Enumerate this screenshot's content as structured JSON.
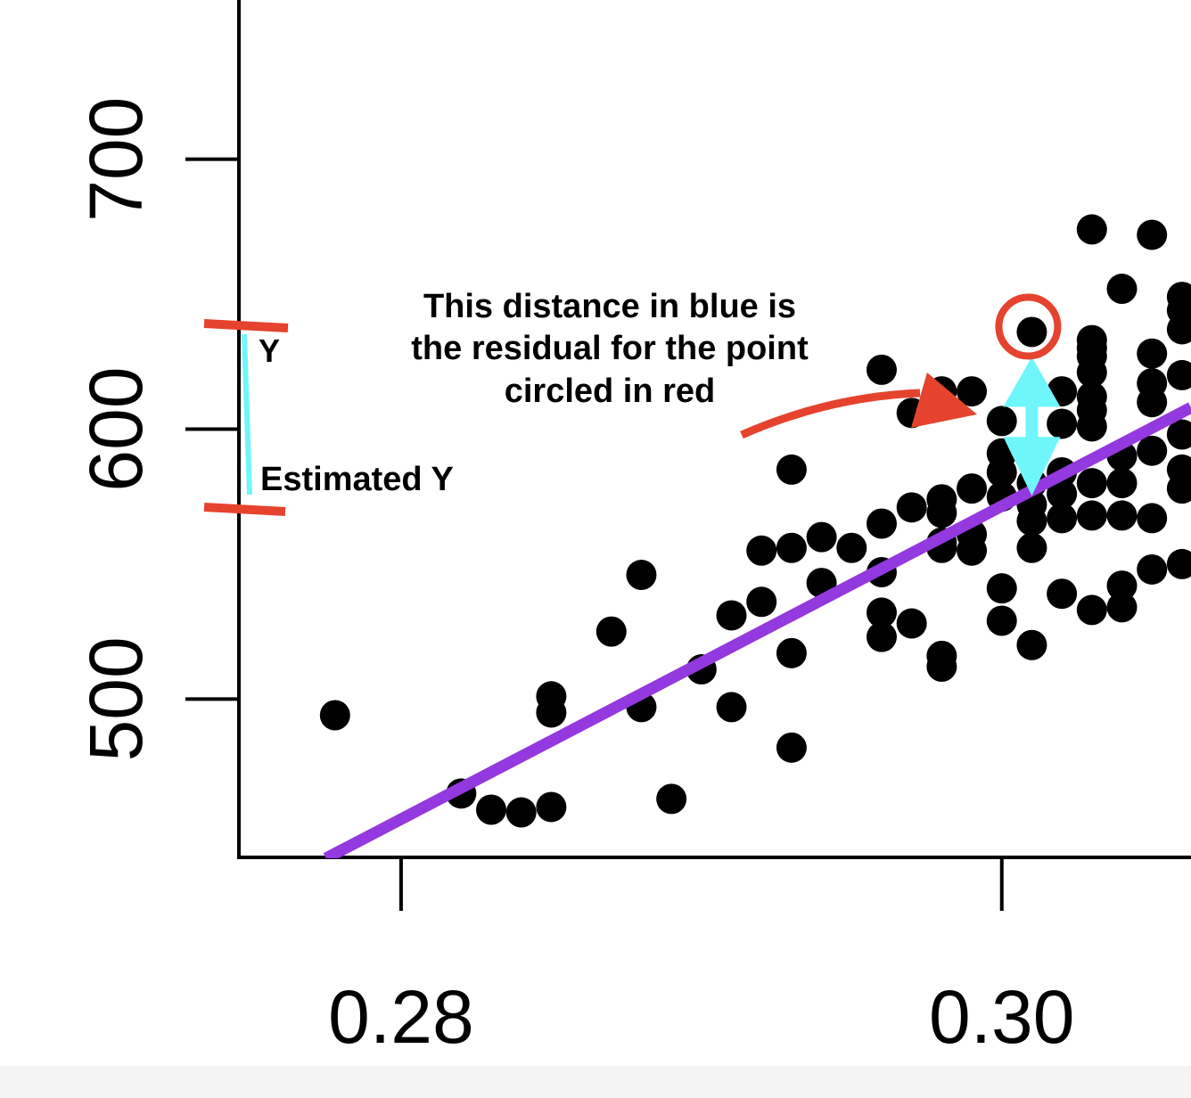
{
  "chart_data": {
    "type": "scatter",
    "title": "",
    "xlabel": "",
    "ylabel": "",
    "xlim": [
      0.2746,
      0.3063
    ],
    "ylim": [
      441,
      759
    ],
    "grid": false,
    "x_ticks": [
      0.28,
      0.3
    ],
    "x_tick_labels": [
      "0.28",
      "0.30"
    ],
    "y_ticks": [
      500,
      600,
      700
    ],
    "y_tick_labels": [
      "500",
      "600",
      "700"
    ],
    "colors": {
      "points": "#000000",
      "regression_line": "#9438e0",
      "residual_arrow": "#6ff6fb",
      "highlight_circle": "#e5432d",
      "bracket": "#e5432d",
      "pointer_arrow": "#e5432d",
      "axis": "#000000"
    },
    "points": [
      [
        0.2778,
        494
      ],
      [
        0.282,
        465
      ],
      [
        0.283,
        459
      ],
      [
        0.284,
        458
      ],
      [
        0.285,
        460
      ],
      [
        0.285,
        495
      ],
      [
        0.285,
        501
      ],
      [
        0.287,
        525
      ],
      [
        0.288,
        546
      ],
      [
        0.288,
        497
      ],
      [
        0.289,
        463
      ],
      [
        0.29,
        511
      ],
      [
        0.291,
        497
      ],
      [
        0.291,
        531
      ],
      [
        0.292,
        536
      ],
      [
        0.292,
        555
      ],
      [
        0.293,
        556
      ],
      [
        0.293,
        517
      ],
      [
        0.293,
        585
      ],
      [
        0.293,
        482
      ],
      [
        0.294,
        560
      ],
      [
        0.294,
        543
      ],
      [
        0.295,
        556
      ],
      [
        0.296,
        532
      ],
      [
        0.296,
        523
      ],
      [
        0.296,
        547
      ],
      [
        0.296,
        565
      ],
      [
        0.296,
        622
      ],
      [
        0.297,
        571
      ],
      [
        0.297,
        528
      ],
      [
        0.297,
        606
      ],
      [
        0.298,
        512
      ],
      [
        0.298,
        516
      ],
      [
        0.298,
        556
      ],
      [
        0.298,
        569
      ],
      [
        0.298,
        574
      ],
      [
        0.298,
        558
      ],
      [
        0.298,
        614
      ],
      [
        0.299,
        555
      ],
      [
        0.299,
        561
      ],
      [
        0.299,
        578
      ],
      [
        0.299,
        614
      ],
      [
        0.3,
        529
      ],
      [
        0.3,
        541
      ],
      [
        0.3,
        584
      ],
      [
        0.3,
        591
      ],
      [
        0.3,
        575
      ],
      [
        0.3,
        603
      ],
      [
        0.301,
        520
      ],
      [
        0.301,
        556
      ],
      [
        0.301,
        566
      ],
      [
        0.301,
        572
      ],
      [
        0.301,
        580
      ],
      [
        0.301,
        636
      ],
      [
        0.302,
        539
      ],
      [
        0.302,
        567
      ],
      [
        0.302,
        576
      ],
      [
        0.302,
        584
      ],
      [
        0.302,
        602
      ],
      [
        0.302,
        614
      ],
      [
        0.303,
        533
      ],
      [
        0.303,
        568
      ],
      [
        0.303,
        580
      ],
      [
        0.303,
        601
      ],
      [
        0.303,
        607
      ],
      [
        0.303,
        612
      ],
      [
        0.303,
        621
      ],
      [
        0.303,
        627
      ],
      [
        0.303,
        630
      ],
      [
        0.303,
        633
      ],
      [
        0.303,
        674
      ],
      [
        0.304,
        534
      ],
      [
        0.304,
        542
      ],
      [
        0.304,
        568
      ],
      [
        0.304,
        580
      ],
      [
        0.304,
        590
      ],
      [
        0.304,
        652
      ],
      [
        0.305,
        548
      ],
      [
        0.305,
        567
      ],
      [
        0.305,
        592
      ],
      [
        0.305,
        610
      ],
      [
        0.305,
        617
      ],
      [
        0.305,
        628
      ],
      [
        0.305,
        672
      ],
      [
        0.306,
        550
      ],
      [
        0.306,
        578
      ],
      [
        0.306,
        585
      ],
      [
        0.306,
        598
      ],
      [
        0.306,
        620
      ],
      [
        0.306,
        637
      ],
      [
        0.306,
        644
      ],
      [
        0.306,
        649
      ]
    ],
    "regression_line": {
      "from": [
        0.2775,
        441
      ],
      "to": [
        0.3063,
        608
      ]
    },
    "highlighted_point": [
      0.301,
      636
    ],
    "residual": {
      "x": 0.301,
      "from": 636,
      "to": 574
    },
    "annotations": {
      "residual_note": [
        "This distance in blue  is",
        "the residual for the point",
        "circled in red"
      ],
      "y_label": "Y",
      "estimated_y_label": "Estimated Y"
    }
  }
}
